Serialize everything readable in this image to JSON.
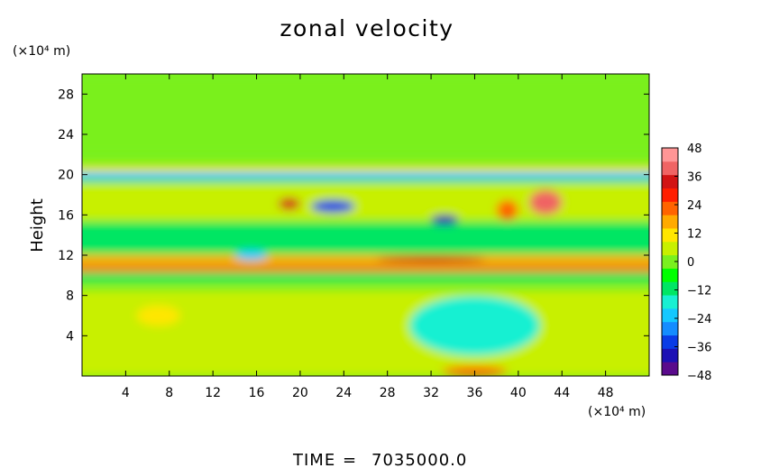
{
  "chart_data": {
    "type": "heatmap",
    "title": "zonal velocity",
    "ylabel": "Height",
    "xunit": "(×10⁴ m)",
    "yunit": "(×10⁴ m)",
    "xlim": [
      0,
      52
    ],
    "ylim": [
      0,
      30
    ],
    "xticks": [
      "4",
      "8",
      "12",
      "16",
      "20",
      "24",
      "28",
      "32",
      "36",
      "40",
      "44",
      "48"
    ],
    "yticks": [
      "4",
      "8",
      "12",
      "16",
      "20",
      "24",
      "28"
    ],
    "xtick_values": [
      4,
      8,
      12,
      16,
      20,
      24,
      28,
      32,
      36,
      40,
      44,
      48
    ],
    "ytick_values": [
      4,
      8,
      12,
      16,
      20,
      24,
      28
    ],
    "colorbar": {
      "min": -48,
      "max": 48,
      "labels": [
        "48",
        "36",
        "24",
        "12",
        "0",
        "−12",
        "−24",
        "−36",
        "−48"
      ],
      "label_values": [
        48,
        36,
        24,
        12,
        0,
        -12,
        -24,
        -36,
        -48
      ],
      "palette": [
        "#5a0a8c",
        "#1c10b4",
        "#0a3ce6",
        "#148cff",
        "#14c8ff",
        "#18f0d2",
        "#00e664",
        "#00ff00",
        "#7af01e",
        "#c8f000",
        "#ffe600",
        "#ffaa00",
        "#ff6400",
        "#ff1e00",
        "#d21414",
        "#f06464",
        "#ff9696"
      ]
    },
    "features": [
      {
        "x": 0,
        "y": 22,
        "w": 52,
        "h": 8,
        "value": 0
      },
      {
        "x": 0,
        "y": 19.4,
        "w": 52,
        "h": 1.0,
        "value": -20
      },
      {
        "x": 0,
        "y": 20.3,
        "w": 52,
        "h": 0.6,
        "value": 12
      },
      {
        "x": 0,
        "y": 15.5,
        "w": 52,
        "h": 3.6,
        "value": 6
      },
      {
        "x": 0,
        "y": 12.2,
        "w": 52,
        "h": 3.0,
        "value": -10
      },
      {
        "x": 0,
        "y": 11.0,
        "w": 52,
        "h": 1.0,
        "value": 16
      },
      {
        "x": 0,
        "y": 9.4,
        "w": 52,
        "h": 0.9,
        "value": -12
      },
      {
        "x": 0,
        "y": 10.3,
        "w": 52,
        "h": 0.6,
        "value": 20
      },
      {
        "x": 0,
        "y": 0,
        "w": 52,
        "h": 8.5,
        "value": 6
      },
      {
        "x": 30,
        "y": 2,
        "w": 12,
        "h": 6,
        "value": -16
      },
      {
        "x": 5,
        "y": 5,
        "w": 4,
        "h": 2,
        "value": 14
      },
      {
        "x": 18,
        "y": 16.5,
        "w": 2,
        "h": 1.2,
        "value": 32
      },
      {
        "x": 21,
        "y": 16.2,
        "w": 4,
        "h": 1.3,
        "value": -36
      },
      {
        "x": 32,
        "y": 15.0,
        "w": 2.5,
        "h": 1.0,
        "value": -40
      },
      {
        "x": 41,
        "y": 16.0,
        "w": 3,
        "h": 2.5,
        "value": 40
      },
      {
        "x": 27,
        "y": 11.3,
        "w": 10,
        "h": 0.6,
        "value": 36
      },
      {
        "x": 38,
        "y": 15.5,
        "w": 2,
        "h": 2,
        "value": 20
      },
      {
        "x": 33,
        "y": 0,
        "w": 6,
        "h": 1,
        "value": 24
      },
      {
        "x": 14,
        "y": 11.5,
        "w": 3,
        "h": 1.0,
        "value": -24
      }
    ]
  },
  "footer": {
    "time_label": "TIME",
    "time_eq": "=",
    "time_value": "7035000.0"
  }
}
